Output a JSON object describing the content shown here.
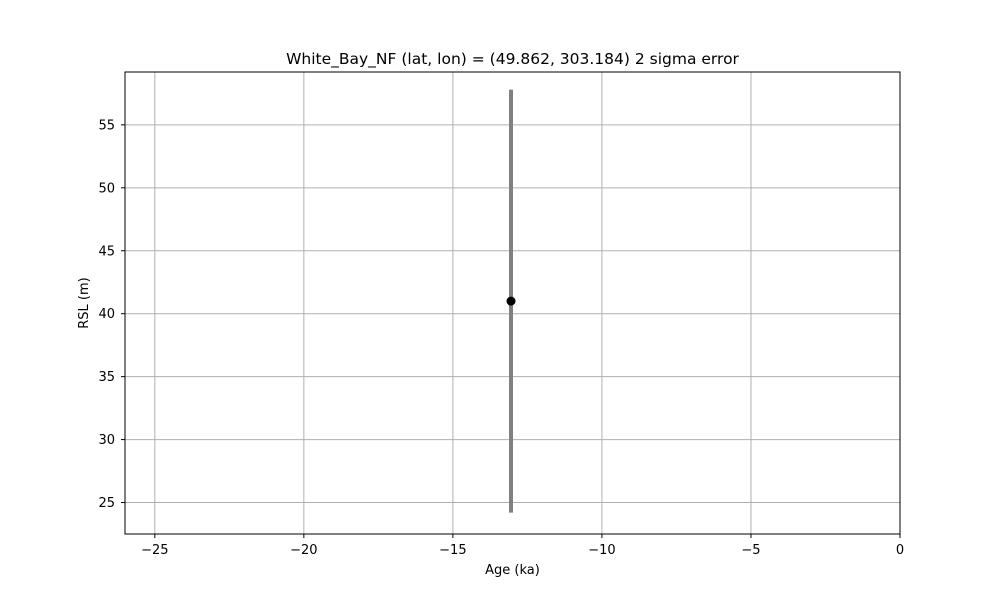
{
  "chart_data": {
    "type": "scatter",
    "title": "White_Bay_NF (lat, lon) = (49.862, 303.184)  2 sigma error",
    "xlabel": "Age (ka)",
    "ylabel": "RSL (m)",
    "xlim": [
      -26,
      0
    ],
    "ylim": [
      22.5,
      59.2
    ],
    "xticks": [
      -25,
      -20,
      -15,
      -10,
      -5,
      0
    ],
    "xtick_labels": [
      "−25",
      "−20",
      "−15",
      "−10",
      "−5",
      "0"
    ],
    "yticks": [
      25,
      30,
      35,
      40,
      45,
      50,
      55
    ],
    "ytick_labels": [
      "25",
      "30",
      "35",
      "40",
      "45",
      "50",
      "55"
    ],
    "grid": true,
    "points": [
      {
        "x": -13.05,
        "y": 41.0,
        "y_err_low": 24.2,
        "y_err_high": 57.8
      }
    ],
    "colors": {
      "point": "#000000",
      "errorbar": "#808080",
      "grid": "#b0b0b0"
    }
  }
}
